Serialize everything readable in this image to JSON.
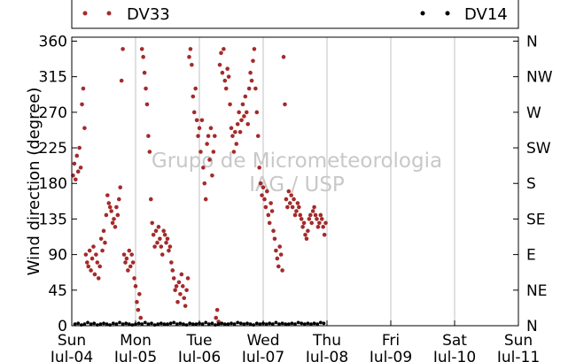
{
  "chart_data": {
    "type": "scatter",
    "ylabel": "Wind direction (degree)",
    "xlabel": "",
    "ylim": [
      0,
      365
    ],
    "grid": "vertical lines at day boundaries",
    "legend_position": "top, outside plot, spanning width",
    "watermark": [
      "Grupo de Micrometeorologia",
      "IAG / USP"
    ],
    "y_ticks": [
      0,
      45,
      90,
      135,
      180,
      225,
      270,
      315,
      360
    ],
    "y_ticks_right": [
      "N",
      "NE",
      "E",
      "SE",
      "S",
      "SW",
      "W",
      "NW",
      "N"
    ],
    "x_ticks": [
      {
        "day": 0,
        "dow": "Sun",
        "date": "Jul-04"
      },
      {
        "day": 1,
        "dow": "Mon",
        "date": "Jul-05"
      },
      {
        "day": 2,
        "dow": "Tue",
        "date": "Jul-06"
      },
      {
        "day": 3,
        "dow": "Wed",
        "date": "Jul-07"
      },
      {
        "day": 4,
        "dow": "Thu",
        "date": "Jul-08"
      },
      {
        "day": 5,
        "dow": "Fri",
        "date": "Jul-09"
      },
      {
        "day": 6,
        "dow": "Sat",
        "date": "Jul-10"
      },
      {
        "day": 7,
        "dow": "Sun",
        "date": "Jul-11"
      }
    ],
    "series": [
      {
        "name": "DV33",
        "color": "#a52a2a",
        "x_unit": "days since Jul-04 00:00",
        "points": [
          [
            0.02,
            190
          ],
          [
            0.04,
            205
          ],
          [
            0.06,
            185
          ],
          [
            0.08,
            215
          ],
          [
            0.1,
            195
          ],
          [
            0.12,
            225
          ],
          [
            0.14,
            200
          ],
          [
            0.16,
            280
          ],
          [
            0.18,
            300
          ],
          [
            0.2,
            250
          ],
          [
            0.22,
            90
          ],
          [
            0.24,
            80
          ],
          [
            0.26,
            75
          ],
          [
            0.28,
            95
          ],
          [
            0.3,
            70
          ],
          [
            0.32,
            85
          ],
          [
            0.34,
            100
          ],
          [
            0.36,
            65
          ],
          [
            0.38,
            90
          ],
          [
            0.4,
            80
          ],
          [
            0.42,
            60
          ],
          [
            0.44,
            75
          ],
          [
            0.46,
            110
          ],
          [
            0.48,
            95
          ],
          [
            0.5,
            120
          ],
          [
            0.52,
            105
          ],
          [
            0.54,
            140
          ],
          [
            0.56,
            165
          ],
          [
            0.58,
            155
          ],
          [
            0.6,
            150
          ],
          [
            0.62,
            145
          ],
          [
            0.64,
            130
          ],
          [
            0.66,
            135
          ],
          [
            0.68,
            125
          ],
          [
            0.7,
            150
          ],
          [
            0.72,
            140
          ],
          [
            0.74,
            160
          ],
          [
            0.76,
            175
          ],
          [
            0.78,
            310
          ],
          [
            0.8,
            350
          ],
          [
            0.82,
            90
          ],
          [
            0.84,
            80
          ],
          [
            0.86,
            85
          ],
          [
            0.88,
            70
          ],
          [
            0.9,
            95
          ],
          [
            0.92,
            75
          ],
          [
            0.94,
            90
          ],
          [
            0.96,
            80
          ],
          [
            0.98,
            60
          ],
          [
            1.0,
            50
          ],
          [
            1.02,
            30
          ],
          [
            1.04,
            20
          ],
          [
            1.06,
            40
          ],
          [
            1.08,
            10
          ],
          [
            1.1,
            350
          ],
          [
            1.12,
            340
          ],
          [
            1.14,
            320
          ],
          [
            1.16,
            300
          ],
          [
            1.18,
            280
          ],
          [
            1.2,
            240
          ],
          [
            1.22,
            220
          ],
          [
            1.24,
            160
          ],
          [
            1.26,
            130
          ],
          [
            1.28,
            115
          ],
          [
            1.3,
            100
          ],
          [
            1.32,
            120
          ],
          [
            1.34,
            105
          ],
          [
            1.36,
            125
          ],
          [
            1.38,
            110
          ],
          [
            1.4,
            100
          ],
          [
            1.42,
            90
          ],
          [
            1.44,
            120
          ],
          [
            1.46,
            115
          ],
          [
            1.48,
            105
          ],
          [
            1.5,
            110
          ],
          [
            1.52,
            95
          ],
          [
            1.54,
            100
          ],
          [
            1.56,
            80
          ],
          [
            1.58,
            70
          ],
          [
            1.6,
            60
          ],
          [
            1.62,
            45
          ],
          [
            1.64,
            50
          ],
          [
            1.66,
            30
          ],
          [
            1.68,
            55
          ],
          [
            1.7,
            40
          ],
          [
            1.72,
            65
          ],
          [
            1.74,
            50
          ],
          [
            1.76,
            35
          ],
          [
            1.78,
            25
          ],
          [
            1.8,
            45
          ],
          [
            1.82,
            60
          ],
          [
            1.84,
            340
          ],
          [
            1.86,
            350
          ],
          [
            1.88,
            330
          ],
          [
            1.9,
            290
          ],
          [
            1.92,
            270
          ],
          [
            1.94,
            300
          ],
          [
            1.96,
            260
          ],
          [
            1.98,
            240
          ],
          [
            2.0,
            250
          ],
          [
            2.02,
            220
          ],
          [
            2.04,
            260
          ],
          [
            2.06,
            200
          ],
          [
            2.08,
            180
          ],
          [
            2.1,
            160
          ],
          [
            2.12,
            230
          ],
          [
            2.14,
            240
          ],
          [
            2.16,
            210
          ],
          [
            2.18,
            250
          ],
          [
            2.2,
            190
          ],
          [
            2.22,
            220
          ],
          [
            2.24,
            240
          ],
          [
            2.26,
            10
          ],
          [
            2.28,
            20
          ],
          [
            2.3,
            5
          ],
          [
            2.32,
            330
          ],
          [
            2.34,
            345
          ],
          [
            2.36,
            320
          ],
          [
            2.38,
            350
          ],
          [
            2.4,
            310
          ],
          [
            2.42,
            300
          ],
          [
            2.44,
            325
          ],
          [
            2.46,
            315
          ],
          [
            2.48,
            280
          ],
          [
            2.5,
            250
          ],
          [
            2.52,
            240
          ],
          [
            2.54,
            220
          ],
          [
            2.56,
            245
          ],
          [
            2.58,
            230
          ],
          [
            2.6,
            255
          ],
          [
            2.62,
            270
          ],
          [
            2.64,
            245
          ],
          [
            2.66,
            260
          ],
          [
            2.68,
            280
          ],
          [
            2.7,
            265
          ],
          [
            2.72,
            290
          ],
          [
            2.74,
            270
          ],
          [
            2.76,
            255
          ],
          [
            2.78,
            300
          ],
          [
            2.8,
            320
          ],
          [
            2.82,
            310
          ],
          [
            2.84,
            335
          ],
          [
            2.86,
            350
          ],
          [
            2.88,
            300
          ],
          [
            2.9,
            270
          ],
          [
            2.92,
            240
          ],
          [
            2.94,
            200
          ],
          [
            2.96,
            180
          ],
          [
            2.98,
            165
          ],
          [
            3.0,
            175
          ],
          [
            3.02,
            160
          ],
          [
            3.04,
            150
          ],
          [
            3.06,
            170
          ],
          [
            3.08,
            140
          ],
          [
            3.1,
            130
          ],
          [
            3.12,
            155
          ],
          [
            3.14,
            145
          ],
          [
            3.16,
            120
          ],
          [
            3.18,
            110
          ],
          [
            3.2,
            95
          ],
          [
            3.22,
            85
          ],
          [
            3.24,
            75
          ],
          [
            3.26,
            100
          ],
          [
            3.28,
            90
          ],
          [
            3.3,
            70
          ],
          [
            3.32,
            340
          ],
          [
            3.34,
            280
          ],
          [
            3.36,
            160
          ],
          [
            3.38,
            150
          ],
          [
            3.4,
            170
          ],
          [
            3.42,
            155
          ],
          [
            3.44,
            165
          ],
          [
            3.46,
            150
          ],
          [
            3.48,
            160
          ],
          [
            3.5,
            140
          ],
          [
            3.52,
            145
          ],
          [
            3.54,
            155
          ],
          [
            3.56,
            150
          ],
          [
            3.58,
            140
          ],
          [
            3.6,
            135
          ],
          [
            3.62,
            125
          ],
          [
            3.64,
            130
          ],
          [
            3.66,
            115
          ],
          [
            3.68,
            110
          ],
          [
            3.7,
            120
          ],
          [
            3.72,
            135
          ],
          [
            3.74,
            140
          ],
          [
            3.76,
            130
          ],
          [
            3.78,
            145
          ],
          [
            3.8,
            150
          ],
          [
            3.82,
            140
          ],
          [
            3.84,
            135
          ],
          [
            3.86,
            125
          ],
          [
            3.88,
            130
          ],
          [
            3.9,
            140
          ],
          [
            3.92,
            135
          ],
          [
            3.94,
            125
          ],
          [
            3.96,
            115
          ],
          [
            3.98,
            130
          ]
        ]
      },
      {
        "name": "DV14",
        "color": "#000000",
        "x_unit": "days since Jul-04 00:00",
        "points": [
          [
            0.05,
            2
          ],
          [
            0.1,
            3
          ],
          [
            0.15,
            1
          ],
          [
            0.2,
            2
          ],
          [
            0.25,
            4
          ],
          [
            0.3,
            2
          ],
          [
            0.35,
            3
          ],
          [
            0.4,
            1
          ],
          [
            0.45,
            2
          ],
          [
            0.5,
            3
          ],
          [
            0.55,
            2
          ],
          [
            0.6,
            1
          ],
          [
            0.65,
            3
          ],
          [
            0.7,
            2
          ],
          [
            0.75,
            4
          ],
          [
            0.8,
            2
          ],
          [
            0.85,
            3
          ],
          [
            0.9,
            2
          ],
          [
            0.95,
            1
          ],
          [
            1.0,
            2
          ],
          [
            1.05,
            3
          ],
          [
            1.1,
            2
          ],
          [
            1.15,
            4
          ],
          [
            1.2,
            2
          ],
          [
            1.25,
            3
          ],
          [
            1.3,
            1
          ],
          [
            1.35,
            2
          ],
          [
            1.4,
            3
          ],
          [
            1.45,
            2
          ],
          [
            1.5,
            2
          ],
          [
            1.55,
            3
          ],
          [
            1.6,
            4
          ],
          [
            1.65,
            2
          ],
          [
            1.7,
            3
          ],
          [
            1.75,
            2
          ],
          [
            1.8,
            1
          ],
          [
            1.85,
            3
          ],
          [
            1.9,
            2
          ],
          [
            1.95,
            2
          ],
          [
            2.0,
            3
          ],
          [
            2.05,
            2
          ],
          [
            2.1,
            4
          ],
          [
            2.15,
            2
          ],
          [
            2.2,
            3
          ],
          [
            2.25,
            1
          ],
          [
            2.3,
            2
          ],
          [
            2.35,
            3
          ],
          [
            2.4,
            2
          ],
          [
            2.45,
            2
          ],
          [
            2.5,
            3
          ],
          [
            2.55,
            2
          ],
          [
            2.6,
            4
          ],
          [
            2.65,
            3
          ],
          [
            2.7,
            2
          ],
          [
            2.75,
            3
          ],
          [
            2.8,
            2
          ],
          [
            2.85,
            1
          ],
          [
            2.9,
            3
          ],
          [
            2.95,
            2
          ],
          [
            3.0,
            3
          ],
          [
            3.05,
            2
          ],
          [
            3.1,
            3
          ],
          [
            3.15,
            2
          ],
          [
            3.2,
            4
          ],
          [
            3.25,
            2
          ],
          [
            3.3,
            3
          ],
          [
            3.35,
            2
          ],
          [
            3.4,
            2
          ],
          [
            3.45,
            3
          ],
          [
            3.5,
            2
          ],
          [
            3.55,
            4
          ],
          [
            3.6,
            3
          ],
          [
            3.65,
            2
          ],
          [
            3.7,
            3
          ],
          [
            3.75,
            2
          ],
          [
            3.8,
            3
          ],
          [
            3.85,
            2
          ],
          [
            3.9,
            4
          ],
          [
            3.95,
            3
          ]
        ]
      }
    ]
  }
}
